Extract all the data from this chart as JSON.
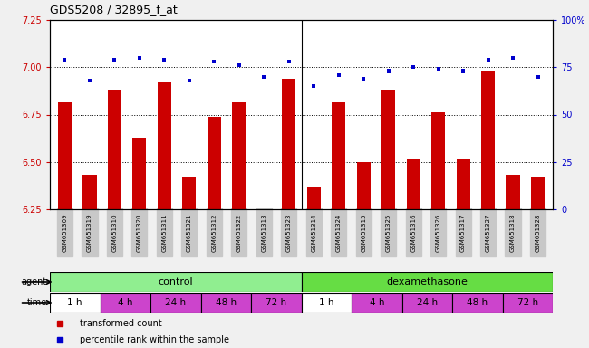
{
  "title": "GDS5208 / 32895_f_at",
  "samples": [
    "GSM651309",
    "GSM651319",
    "GSM651310",
    "GSM651320",
    "GSM651311",
    "GSM651321",
    "GSM651312",
    "GSM651322",
    "GSM651313",
    "GSM651323",
    "GSM651314",
    "GSM651324",
    "GSM651315",
    "GSM651325",
    "GSM651316",
    "GSM651326",
    "GSM651317",
    "GSM651327",
    "GSM651318",
    "GSM651328"
  ],
  "transformed_count": [
    6.82,
    6.43,
    6.88,
    6.63,
    6.92,
    6.42,
    6.74,
    6.82,
    6.25,
    6.94,
    6.37,
    6.82,
    6.5,
    6.88,
    6.52,
    6.76,
    6.52,
    6.98,
    6.43,
    6.42
  ],
  "percentile_rank": [
    79,
    68,
    79,
    80,
    79,
    68,
    78,
    76,
    70,
    78,
    65,
    71,
    69,
    73,
    75,
    74,
    73,
    79,
    80,
    70
  ],
  "ylim_left": [
    6.25,
    7.25
  ],
  "ylim_right": [
    0,
    100
  ],
  "yticks_left": [
    6.25,
    6.5,
    6.75,
    7.0,
    7.25
  ],
  "yticks_right": [
    0,
    25,
    50,
    75,
    100
  ],
  "gridlines": [
    6.5,
    6.75,
    7.0
  ],
  "bar_color": "#cc0000",
  "dot_color": "#0000cc",
  "control_color": "#90ee90",
  "dexa_color": "#66dd44",
  "time_colors": [
    "#ffffff",
    "#cc44cc",
    "#cc44cc",
    "#cc44cc",
    "#cc44cc",
    "#ffffff",
    "#cc44cc",
    "#cc44cc",
    "#cc44cc",
    "#cc44cc"
  ],
  "time_labels": [
    "1 h",
    "4 h",
    "24 h",
    "48 h",
    "72 h",
    "1 h",
    "4 h",
    "24 h",
    "48 h",
    "72 h"
  ],
  "legend_bar_label": "transformed count",
  "legend_dot_label": "percentile rank within the sample",
  "bg_color": "#f0f0f0",
  "plot_bg": "#ffffff",
  "xticklabel_bg": "#c8c8c8"
}
